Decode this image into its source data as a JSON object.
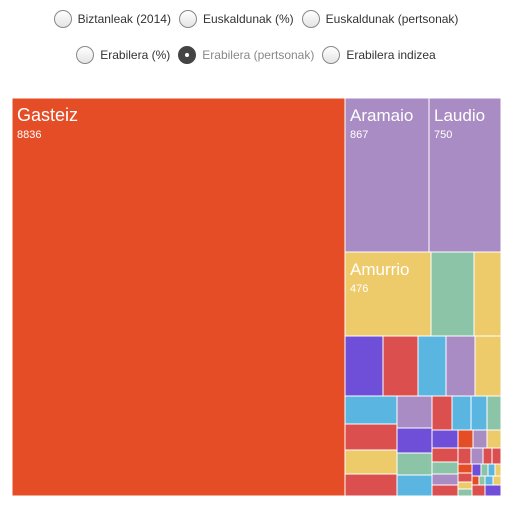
{
  "controls": {
    "row1": [
      {
        "label": "Biztanleak (2014)",
        "selected": false
      },
      {
        "label": "Euskaldunak (%)",
        "selected": false
      },
      {
        "label": "Euskaldunak (pertsonak)",
        "selected": false
      }
    ],
    "row2": [
      {
        "label": "Erabilera (%)",
        "selected": false
      },
      {
        "label": "Erabilera (pertsonak)",
        "selected": true
      },
      {
        "label": "Erabilera indizea",
        "selected": false
      }
    ]
  },
  "colors": {
    "orange": "#E44D26",
    "purple": "#AA8CC5",
    "yellow": "#EDCA6A",
    "green": "#8BC4A6",
    "violet": "#6F4FD8",
    "red": "#DB4F4F",
    "blue": "#5AB5E0"
  },
  "chart_data": {
    "type": "treemap",
    "labeled": [
      {
        "name": "Gasteiz",
        "value": 8836
      },
      {
        "name": "Aramaio",
        "value": 867
      },
      {
        "name": "Laudio",
        "value": 750
      },
      {
        "name": "Amurrio",
        "value": 476
      }
    ]
  }
}
